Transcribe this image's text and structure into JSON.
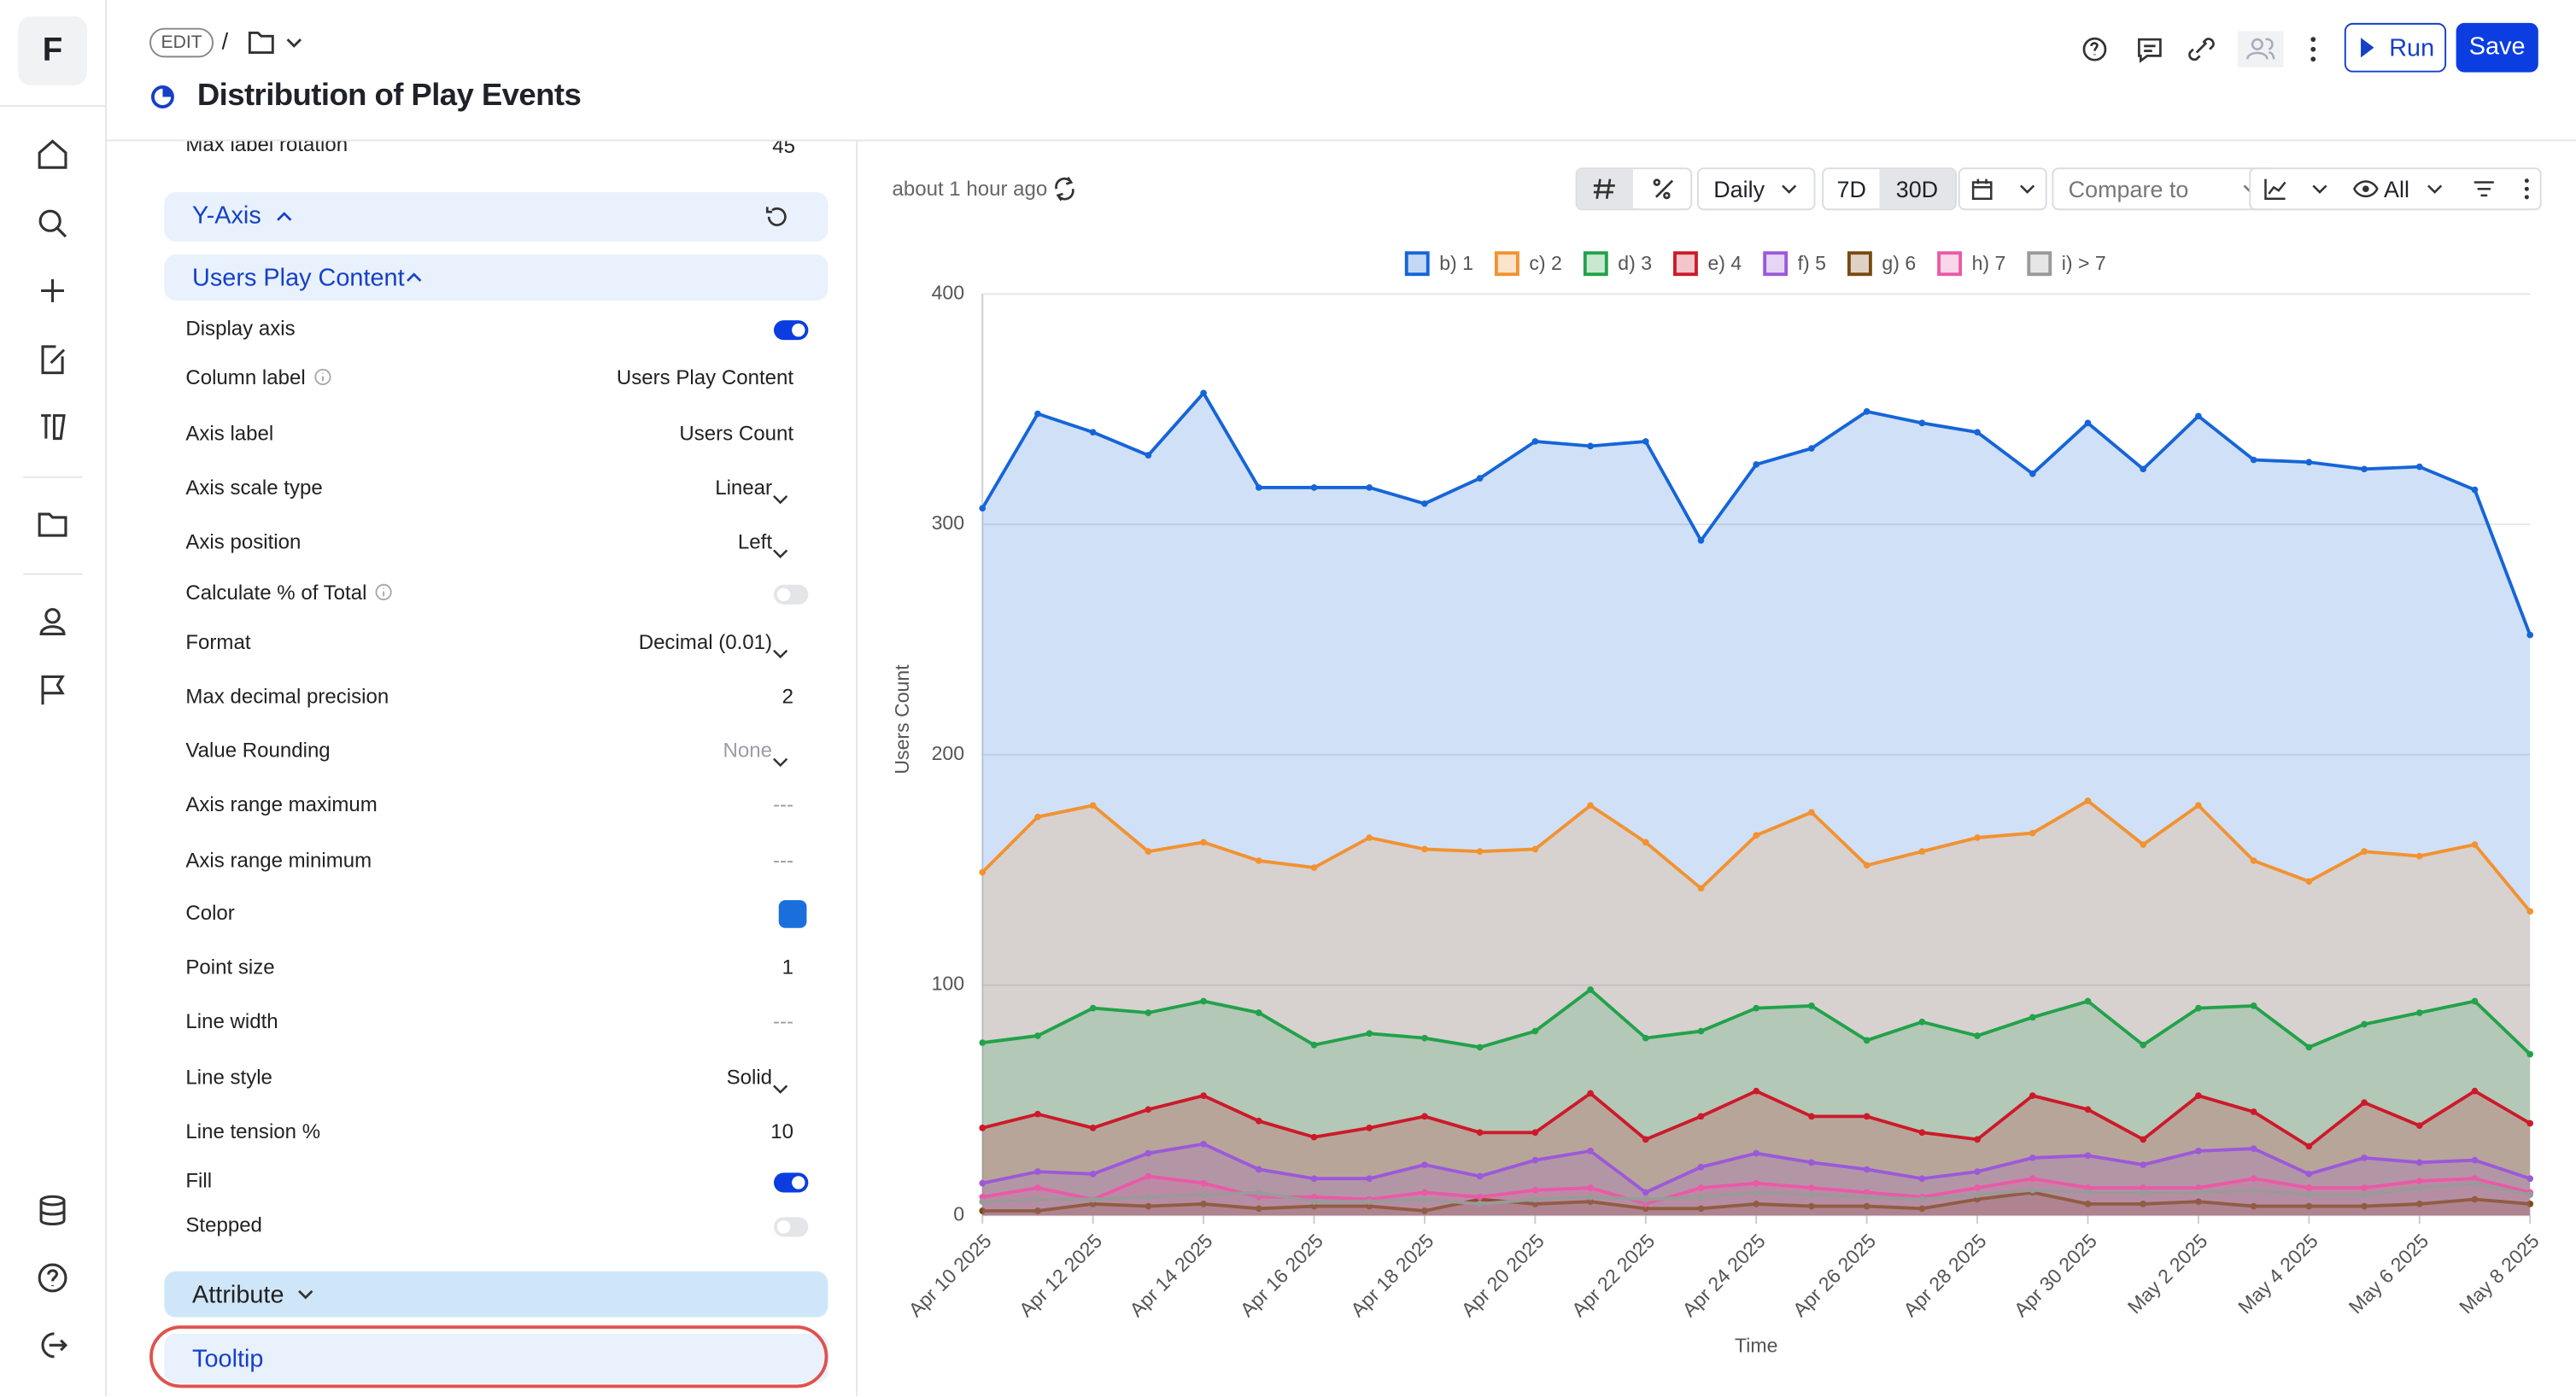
{
  "header": {
    "logo": "F",
    "edit": "EDIT",
    "separator": "/",
    "title": "Distribution of Play Events",
    "run": "Run",
    "save": "Save"
  },
  "settings": {
    "partial_row": {
      "label": "Max label rotation",
      "value": "45"
    },
    "section": "Y-Axis",
    "subsection": "Users Play Content",
    "rows": [
      {
        "label": "Display axis",
        "toggle": true
      },
      {
        "label": "Column label",
        "value": "Users Play Content",
        "info": true
      },
      {
        "label": "Axis label",
        "value": "Users Count"
      },
      {
        "label": "Axis scale type",
        "value": "Linear",
        "dropdown": true
      },
      {
        "label": "Axis position",
        "value": "Left",
        "dropdown": true
      },
      {
        "label": "Calculate % of Total",
        "toggle": false,
        "info": true
      },
      {
        "label": "Format",
        "value": "Decimal (0.01)",
        "dropdown": true
      },
      {
        "label": "Max decimal precision",
        "value": "2"
      },
      {
        "label": "Value Rounding",
        "value": "None",
        "dropdown": true,
        "muted": true
      },
      {
        "label": "Axis range maximum",
        "value": "---",
        "muted": true
      },
      {
        "label": "Axis range minimum",
        "value": "---",
        "muted": true
      },
      {
        "label": "Color",
        "color": "#1a6fdc"
      },
      {
        "label": "Point size",
        "value": "1"
      },
      {
        "label": "Line width",
        "value": "---",
        "muted": true
      },
      {
        "label": "Line style",
        "value": "Solid",
        "dropdown": true
      },
      {
        "label": "Line tension %",
        "value": "10"
      },
      {
        "label": "Fill",
        "toggle": true
      },
      {
        "label": "Stepped",
        "toggle": false
      }
    ],
    "attribute": "Attribute",
    "tooltip": "Tooltip"
  },
  "toolbar": {
    "updated": "about 1 hour ago",
    "interval": "Daily",
    "range_short": "7D",
    "range_long": "30D",
    "compare": "Compare to",
    "visibility": "All"
  },
  "chart_data": {
    "type": "line",
    "area_fill": true,
    "xlabel": "Time",
    "ylabel": "Users Count",
    "ylim": [
      0,
      400
    ],
    "yticks": [
      0,
      100,
      200,
      300,
      400
    ],
    "grid": true,
    "legend": "top",
    "categories": [
      "Apr 10 2025",
      null,
      "Apr 12 2025",
      null,
      "Apr 14 2025",
      null,
      "Apr 16 2025",
      null,
      "Apr 18 2025",
      null,
      "Apr 20 2025",
      null,
      "Apr 22 2025",
      null,
      "Apr 24 2025",
      null,
      "Apr 26 2025",
      null,
      "Apr 28 2025",
      null,
      "Apr 30 2025",
      null,
      "May 2 2025",
      null,
      "May 4 2025",
      null,
      "May 6 2025",
      null,
      "May 8 2025"
    ],
    "series": [
      {
        "name": "b) 1",
        "color": "#1565d8",
        "values": [
          307,
          348,
          340,
          330,
          357,
          316,
          316,
          316,
          309,
          320,
          336,
          334,
          336,
          293,
          326,
          333,
          349,
          344,
          340,
          322,
          344,
          324,
          347,
          328,
          327,
          324,
          325,
          315,
          252
        ]
      },
      {
        "name": "c) 2",
        "color": "#f29230",
        "values": [
          149,
          173,
          178,
          158,
          162,
          154,
          151,
          164,
          159,
          158,
          159,
          178,
          162,
          142,
          165,
          175,
          152,
          158,
          164,
          166,
          180,
          161,
          178,
          154,
          145,
          158,
          156,
          161,
          132
        ]
      },
      {
        "name": "d) 3",
        "color": "#22a24a",
        "values": [
          75,
          78,
          90,
          88,
          93,
          88,
          74,
          79,
          77,
          73,
          80,
          98,
          77,
          80,
          90,
          91,
          76,
          84,
          78,
          86,
          93,
          74,
          90,
          91,
          73,
          83,
          88,
          93,
          70
        ]
      },
      {
        "name": "e) 4",
        "color": "#cc1a2a",
        "values": [
          38,
          44,
          38,
          46,
          52,
          41,
          34,
          38,
          43,
          36,
          36,
          53,
          33,
          43,
          54,
          43,
          43,
          36,
          33,
          52,
          46,
          33,
          52,
          45,
          30,
          49,
          39,
          54,
          40
        ]
      },
      {
        "name": "f) 5",
        "color": "#9c59d9",
        "values": [
          14,
          19,
          18,
          27,
          31,
          20,
          16,
          16,
          22,
          17,
          24,
          28,
          10,
          21,
          27,
          23,
          20,
          16,
          19,
          25,
          26,
          22,
          28,
          29,
          18,
          25,
          23,
          24,
          16
        ]
      },
      {
        "name": "g) 6",
        "color": "#7a4a12",
        "values": [
          2,
          2,
          5,
          4,
          5,
          3,
          4,
          4,
          2,
          7,
          5,
          6,
          3,
          3,
          5,
          4,
          4,
          3,
          7,
          10,
          5,
          5,
          6,
          4,
          4,
          4,
          5,
          7,
          5
        ]
      },
      {
        "name": "h) 7",
        "color": "#e95aa7",
        "values": [
          8,
          12,
          7,
          17,
          14,
          8,
          8,
          7,
          10,
          8,
          11,
          12,
          5,
          12,
          14,
          12,
          10,
          8,
          12,
          16,
          12,
          12,
          12,
          16,
          12,
          12,
          15,
          16,
          10
        ]
      },
      {
        "name": "i) > 7",
        "color": "#9a9a9a",
        "values": [
          6,
          7,
          7,
          8,
          9,
          10,
          6,
          6,
          7,
          5,
          7,
          8,
          7,
          8,
          10,
          9,
          8,
          7,
          9,
          11,
          10,
          10,
          10,
          11,
          9,
          9,
          12,
          14,
          9
        ]
      }
    ]
  }
}
